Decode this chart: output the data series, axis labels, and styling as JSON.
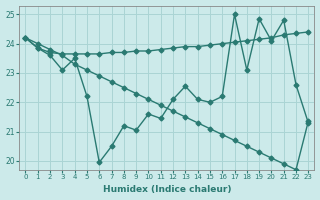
{
  "title": "",
  "xlabel": "Humidex (Indice chaleur)",
  "bg_color": "#cceaea",
  "grid_color": "#aad4d4",
  "line_color": "#2a7a72",
  "xlim": [
    -0.5,
    23.5
  ],
  "ylim": [
    19.7,
    25.3
  ],
  "yticks": [
    20,
    21,
    22,
    23,
    24,
    25
  ],
  "xticks": [
    0,
    1,
    2,
    3,
    4,
    5,
    6,
    7,
    8,
    9,
    10,
    11,
    12,
    13,
    14,
    15,
    16,
    17,
    18,
    19,
    20,
    21,
    22,
    23
  ],
  "series1": [
    24.2,
    23.85,
    23.6,
    23.1,
    23.5,
    22.2,
    19.95,
    20.5,
    21.2,
    21.05,
    21.6,
    21.45,
    22.1,
    22.55,
    22.1,
    22.0,
    22.2,
    25.0,
    23.1,
    24.85,
    24.1,
    24.8,
    22.6,
    21.3
  ],
  "series2": [
    24.2,
    23.85,
    23.7,
    23.65,
    23.65,
    23.65,
    23.65,
    23.7,
    23.7,
    23.75,
    23.75,
    23.8,
    23.85,
    23.9,
    23.9,
    23.95,
    24.0,
    24.05,
    24.1,
    24.15,
    24.2,
    24.3,
    24.35,
    24.4
  ],
  "series3": [
    24.2,
    24.0,
    23.8,
    23.6,
    23.3,
    23.1,
    22.9,
    22.7,
    22.5,
    22.3,
    22.1,
    21.9,
    21.7,
    21.5,
    21.3,
    21.1,
    20.9,
    20.7,
    20.5,
    20.3,
    20.1,
    19.9,
    19.7,
    21.35
  ],
  "marker": "D",
  "marker_size": 2.5,
  "linewidth": 1.0
}
